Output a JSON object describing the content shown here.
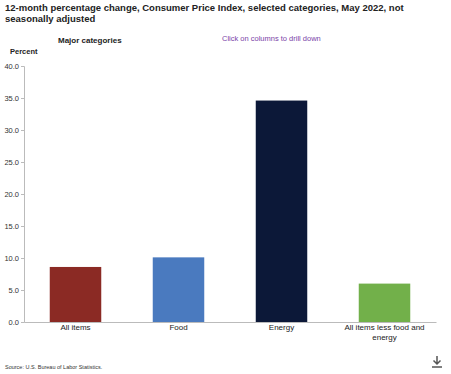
{
  "chart_data": {
    "type": "bar",
    "title": "12-month percentage change, Consumer Price Index, selected categories, May 2022, not seasonally adjusted",
    "subtitle": "Major categories",
    "annotations": [
      "Click on columns to drill down"
    ],
    "y_label": "Percent",
    "source": "Source: U.S. Bureau of Labor Statistics.",
    "categories": [
      "All items",
      "Food",
      "Energy",
      "All items less food and energy"
    ],
    "values": [
      8.6,
      10.1,
      34.6,
      6.0
    ],
    "colors": [
      "#8b2a24",
      "#4a7abf",
      "#0c1838",
      "#72b04a"
    ],
    "ylim": [
      0,
      40
    ],
    "yticks": [
      {
        "value": 0,
        "label": "0.0"
      },
      {
        "value": 5,
        "label": "5.0"
      },
      {
        "value": 10,
        "label": "10.0"
      },
      {
        "value": 15,
        "label": "15.0"
      },
      {
        "value": 20,
        "label": "20.0"
      },
      {
        "value": 25,
        "label": "25.0"
      },
      {
        "value": 30,
        "label": "30.0"
      },
      {
        "value": 35,
        "label": "35.0"
      },
      {
        "value": 40,
        "label": "40.0"
      }
    ],
    "grid": false
  }
}
